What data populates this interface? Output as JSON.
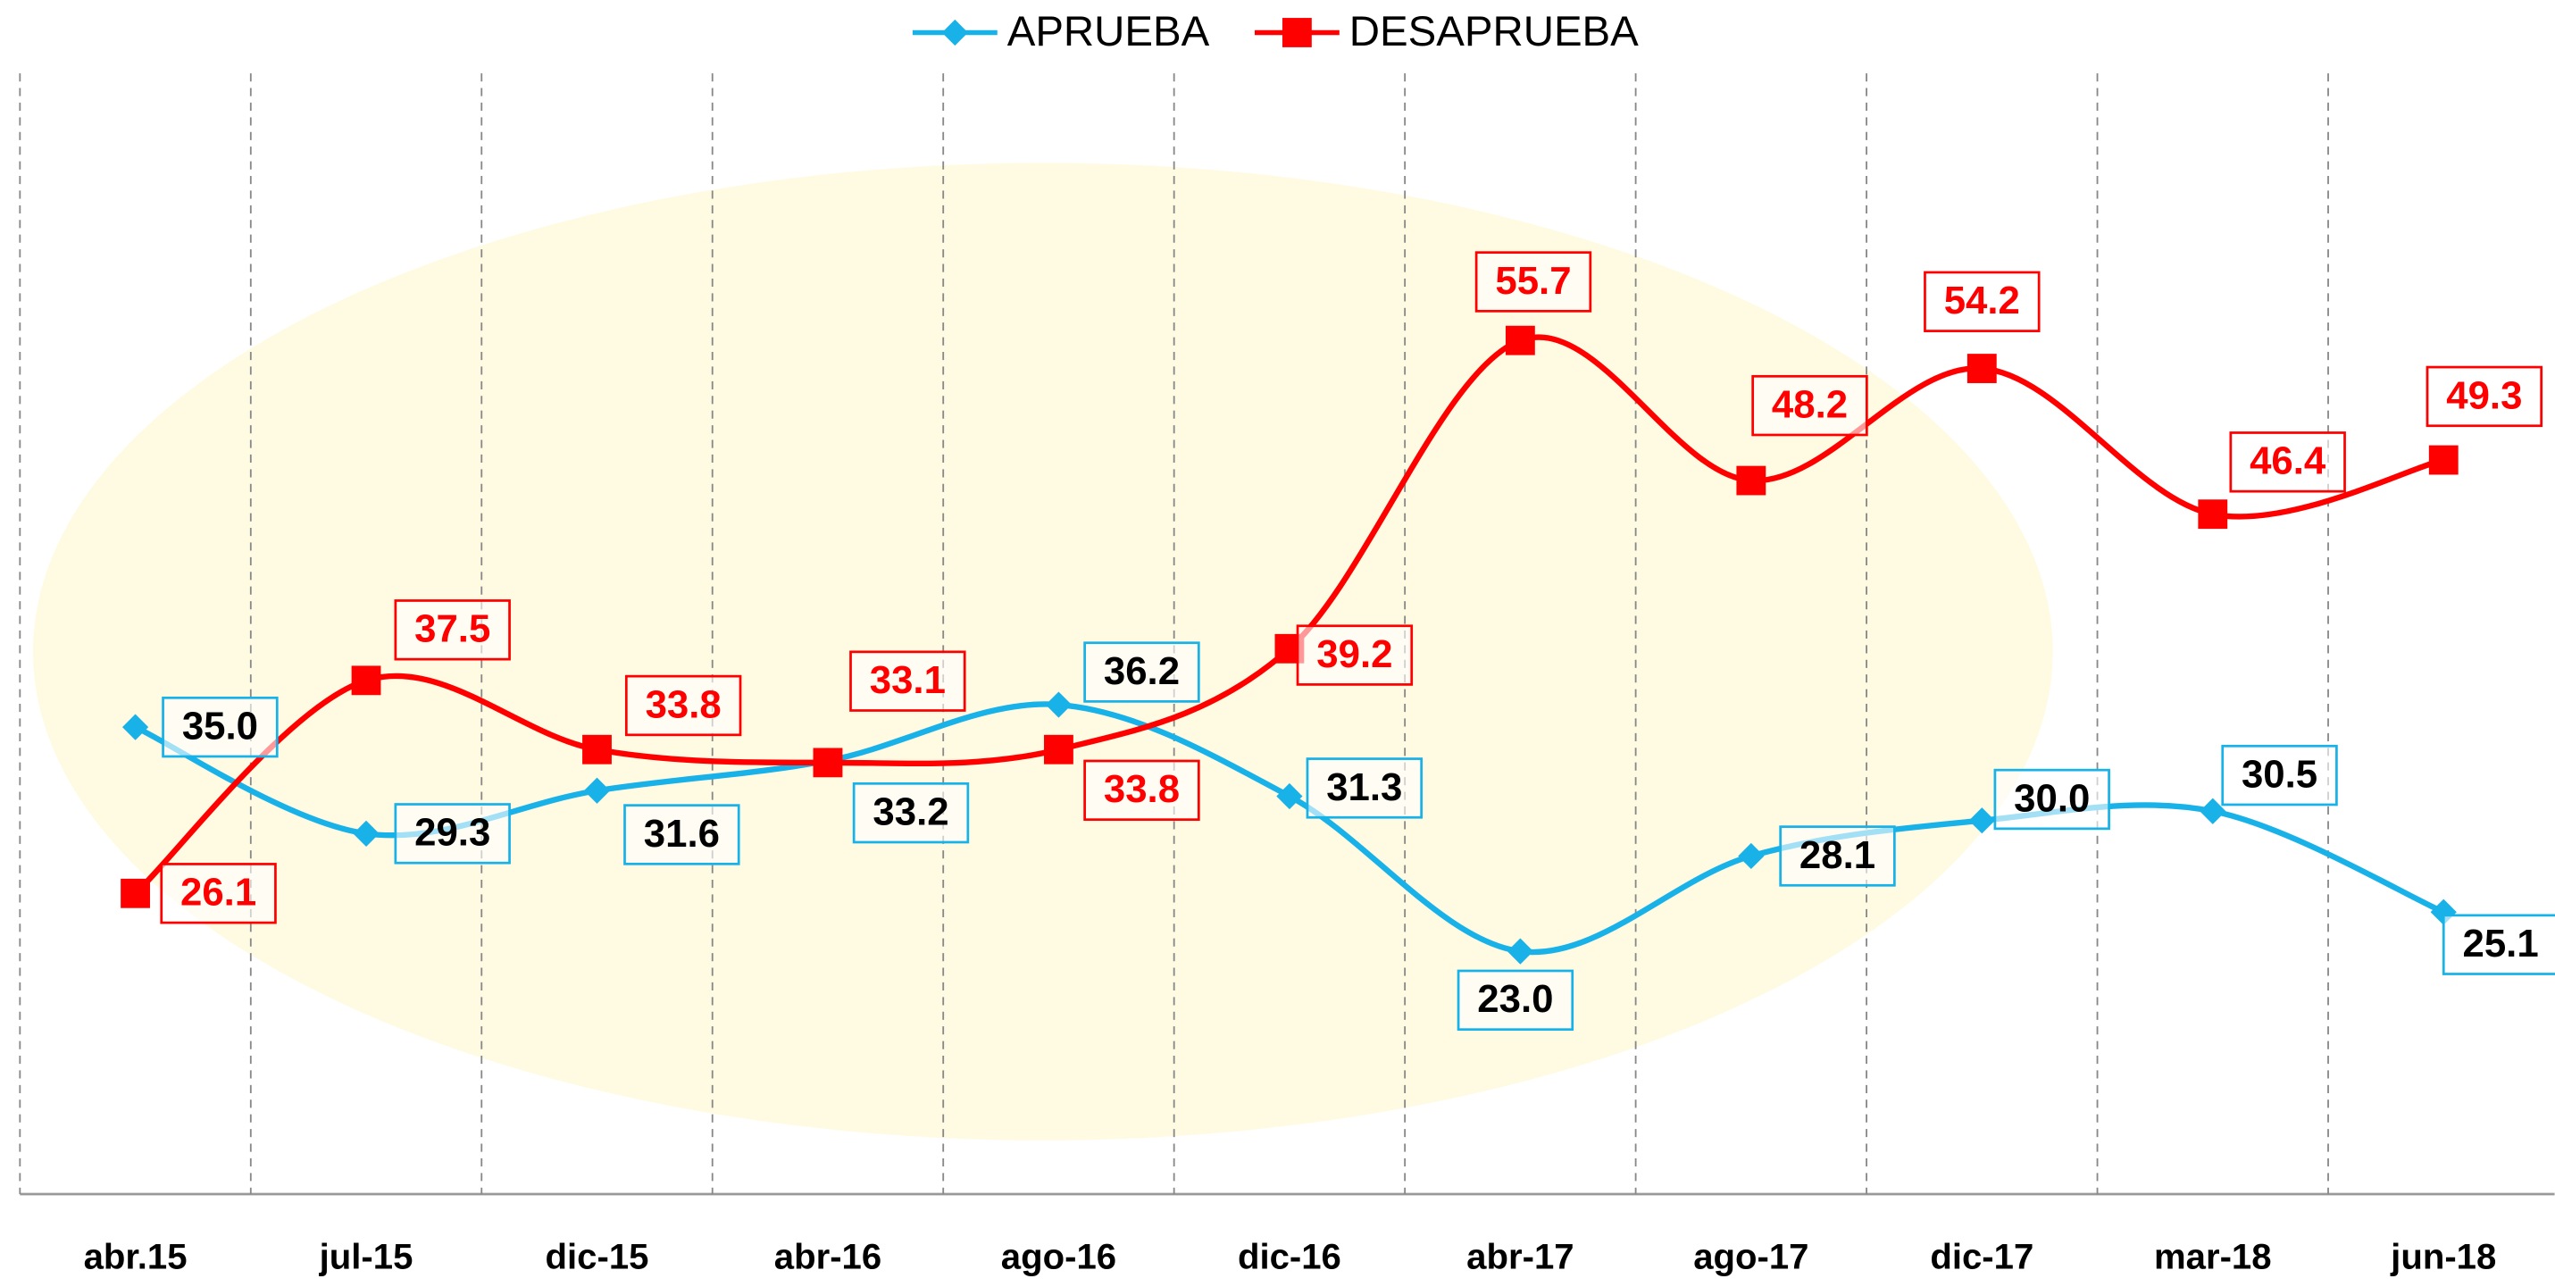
{
  "chart_data": {
    "type": "line",
    "categories": [
      "abr.15",
      "jul-15",
      "dic-15",
      "abr-16",
      "ago-16",
      "dic-16",
      "abr-17",
      "ago-17",
      "dic-17",
      "mar-18",
      "jun-18"
    ],
    "series": [
      {
        "name": "APRUEBA",
        "color": "#19b2e8",
        "marker": "diamond",
        "values": [
          35.0,
          29.3,
          31.6,
          33.2,
          36.2,
          31.3,
          23.0,
          28.1,
          30.0,
          30.5,
          25.1
        ],
        "value_labels": [
          "35.0",
          "29.3",
          "31.6",
          "33.2",
          "36.2",
          "31.3",
          "23.0",
          "28.1",
          "30.0",
          "30.5",
          "25.1"
        ]
      },
      {
        "name": "DESAPRUEBA",
        "color": "#ff0000",
        "marker": "square",
        "values": [
          26.1,
          37.5,
          33.8,
          33.1,
          33.8,
          39.2,
          55.7,
          48.2,
          54.2,
          46.4,
          49.3
        ],
        "value_labels": [
          "26.1",
          "37.5",
          "33.8",
          "33.1",
          "33.8",
          "39.2",
          "55.7",
          "48.2",
          "54.2",
          "46.4",
          "49.3"
        ]
      }
    ],
    "ylim": [
      10,
      70
    ],
    "smooth": true
  }
}
